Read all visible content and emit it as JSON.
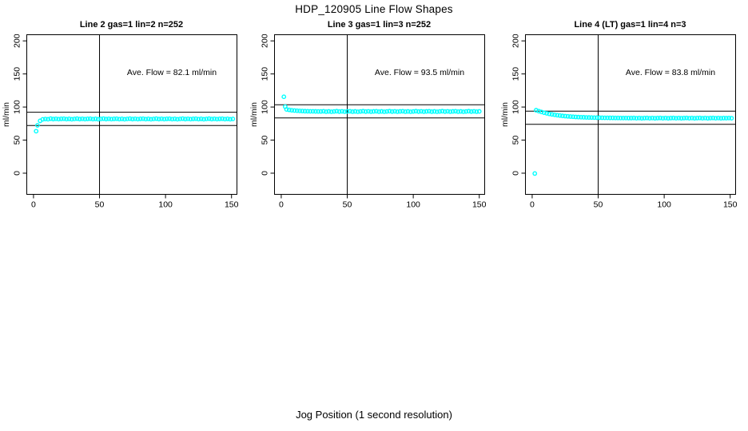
{
  "figure": {
    "title": "HDP_120905  Line Flow Shapes",
    "xlabel": "Jog Position (1 second resolution)",
    "background_color": "#ffffff",
    "axis_color": "#000000",
    "point_color": "#00ffff"
  },
  "chart_data": [
    {
      "type": "scatter",
      "title": "Line 2 gas=1 lin=2 n=252",
      "annotation": "Ave. Flow =  82.1  ml/min",
      "ave_flow_ml_min": 82.1,
      "n": 252,
      "ylabel": "ml/min",
      "xticks": [
        0,
        50,
        100,
        150
      ],
      "yticks": [
        0,
        50,
        100,
        150,
        200
      ],
      "xlim": [
        -5.1,
        154.1
      ],
      "ylim": [
        -32,
        209.3
      ],
      "grid": false,
      "vline_x": 50,
      "hlines": [
        92.1,
        72.1
      ],
      "outliers": [
        [
          2,
          63.5
        ]
      ],
      "series": {
        "x_start": 3,
        "x_step": 2,
        "y": [
          72.3,
          79.1,
          81.4,
          81.9,
          81.6,
          82.4,
          81.8,
          82.2,
          81.7,
          82.1,
          82.3,
          81.7,
          82.1,
          81.6,
          82.0,
          82.4,
          81.8,
          82.2,
          81.7,
          82.1,
          82.3,
          81.7,
          82.1,
          81.6,
          82.0,
          82.4,
          81.8,
          82.2,
          81.7,
          82.1,
          82.3,
          81.7,
          82.1,
          81.6,
          82.0,
          82.4,
          81.8,
          82.2,
          81.7,
          82.1,
          82.3,
          81.7,
          82.1,
          81.6,
          82.0,
          82.4,
          81.8,
          82.2,
          81.7,
          82.1,
          82.3,
          81.7,
          82.1,
          81.6,
          82.0,
          82.4,
          81.8,
          82.2,
          81.7,
          82.1,
          82.3,
          81.7,
          82.1,
          81.6,
          82.0,
          82.4,
          81.8,
          82.2,
          81.7,
          82.1,
          82.3,
          81.7,
          82.1,
          81.6,
          82.0
        ]
      }
    },
    {
      "type": "scatter",
      "title": "Line 3 gas=1 lin=3 n=252",
      "annotation": "Ave. Flow =  93.5  ml/min",
      "ave_flow_ml_min": 93.5,
      "n": 252,
      "ylabel": "ml/min",
      "xticks": [
        0,
        50,
        100,
        150
      ],
      "yticks": [
        0,
        50,
        100,
        150,
        200
      ],
      "xlim": [
        -5.1,
        154.1
      ],
      "ylim": [
        -32,
        209.3
      ],
      "grid": false,
      "vline_x": 50,
      "hlines": [
        103.5,
        83.5
      ],
      "outliers": [
        [
          2,
          115.5
        ],
        [
          3,
          100.5
        ]
      ],
      "series": {
        "x_start": 4,
        "x_step": 2,
        "y": [
          96.4,
          95.7,
          95.1,
          94.7,
          94.4,
          94.1,
          93.9,
          93.7,
          93.6,
          93.5,
          93.5,
          93.4,
          93.3,
          93.3,
          93.6,
          93.0,
          93.4,
          92.9,
          93.3,
          93.7,
          93.1,
          93.5,
          93.0,
          93.4,
          93.6,
          93.0,
          93.4,
          92.9,
          93.3,
          93.7,
          93.1,
          93.5,
          93.0,
          93.4,
          93.6,
          93.0,
          93.4,
          92.9,
          93.3,
          93.7,
          93.1,
          93.5,
          93.0,
          93.4,
          93.6,
          93.0,
          93.4,
          92.9,
          93.3,
          93.7,
          93.1,
          93.5,
          93.0,
          93.4,
          93.6,
          93.0,
          93.4,
          92.9,
          93.3,
          93.7,
          93.1,
          93.5,
          93.0,
          93.4,
          93.6,
          93.0,
          93.4,
          92.9,
          93.3,
          93.7,
          93.1,
          93.5,
          93.0,
          93.4
        ]
      }
    },
    {
      "type": "scatter",
      "title": "Line 4 (LT) gas=1 lin=4 n=3",
      "annotation": "Ave. Flow =  83.8  ml/min",
      "ave_flow_ml_min": 83.8,
      "n": 3,
      "ylabel": "ml/min",
      "xticks": [
        0,
        50,
        100,
        150
      ],
      "yticks": [
        0,
        50,
        100,
        150,
        200
      ],
      "xlim": [
        -5.1,
        154.1
      ],
      "ylim": [
        -32,
        209.3
      ],
      "grid": false,
      "vline_x": 50,
      "hlines": [
        93.8,
        73.8
      ],
      "outliers": [
        [
          2,
          -0.5
        ]
      ],
      "series": {
        "x_start": 3,
        "x_step": 2,
        "y": [
          95.2,
          93.8,
          92.6,
          91.4,
          90.5,
          89.6,
          88.9,
          88.2,
          87.6,
          87.1,
          86.6,
          86.2,
          85.9,
          85.6,
          85.3,
          85.0,
          84.8,
          84.6,
          84.5,
          84.3,
          84.2,
          84.1,
          84.0,
          83.9,
          83.9,
          83.8,
          83.7,
          83.7,
          83.6,
          83.6,
          83.5,
          83.5,
          83.4,
          83.4,
          83.4,
          83.3,
          83.3,
          83.5,
          83.1,
          83.4,
          83.0,
          83.3,
          83.5,
          83.1,
          83.4,
          83.0,
          83.3,
          83.5,
          83.1,
          83.4,
          83.0,
          83.3,
          83.5,
          83.1,
          83.4,
          83.0,
          83.3,
          83.5,
          83.1,
          83.4,
          83.0,
          83.3,
          83.5,
          83.1,
          83.4,
          83.0,
          83.3,
          83.5,
          83.1,
          83.4,
          83.0,
          83.3,
          83.2,
          83.4,
          83.1
        ]
      }
    }
  ]
}
